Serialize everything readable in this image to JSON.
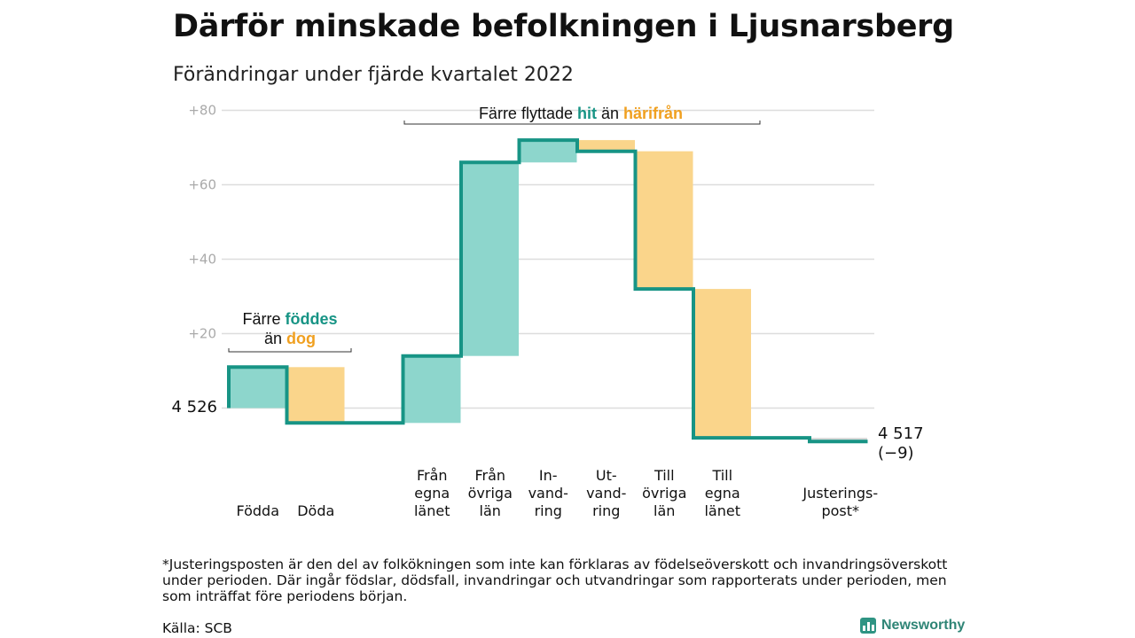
{
  "title": "Därför minskade befolkningen i Ljusnarsberg",
  "subtitle": "Förändringar under fjärde kvartalet 2022",
  "chart_data": {
    "type": "waterfall",
    "start": 4526,
    "start_label": "4 526",
    "end_label_1": "4 517",
    "end_label_2": "(−9)",
    "ylim": [
      -10,
      82
    ],
    "yticks": [
      {
        "v": 20,
        "t": "+20"
      },
      {
        "v": 40,
        "t": "+40"
      },
      {
        "v": 60,
        "t": "+60"
      },
      {
        "v": 80,
        "t": "+80"
      }
    ],
    "steps": [
      {
        "label": [
          "",
          "",
          "Födda"
        ],
        "delta": 11,
        "kind": "in"
      },
      {
        "label": [
          "",
          "",
          "Döda"
        ],
        "delta": -15,
        "kind": "out"
      },
      {
        "label": [
          "Från",
          "egna",
          "länet"
        ],
        "delta": 18,
        "kind": "in"
      },
      {
        "label": [
          "Från",
          "övriga",
          "län"
        ],
        "delta": 52,
        "kind": "in"
      },
      {
        "label": [
          "In-",
          "vand-",
          "ring"
        ],
        "delta": 6,
        "kind": "in"
      },
      {
        "label": [
          "Ut-",
          "vand-",
          "ring"
        ],
        "delta": -3,
        "kind": "out"
      },
      {
        "label": [
          "Till",
          "övriga",
          "län"
        ],
        "delta": -37,
        "kind": "out"
      },
      {
        "label": [
          "Till",
          "egna",
          "länet"
        ],
        "delta": -40,
        "kind": "out"
      },
      {
        "label": [
          "",
          "Justerings-",
          "post*"
        ],
        "delta": -1,
        "kind": "adj"
      }
    ],
    "colors": {
      "in": "#8dd6cc",
      "out": "#fad58b",
      "adj": "#d8d8d8",
      "line": "#179485",
      "grid": "#dddddd"
    },
    "annotations": [
      {
        "lines": [
          [
            {
              "t": "Färre ",
              "c": ""
            },
            {
              "t": "föddes",
              "c": "teal"
            }
          ],
          [
            {
              "t": "än ",
              "c": ""
            },
            {
              "t": "dog",
              "c": "orange"
            }
          ]
        ]
      },
      {
        "lines": [
          [
            {
              "t": "Färre flyttade ",
              "c": ""
            },
            {
              "t": "hit",
              "c": "teal"
            },
            {
              "t": " än ",
              "c": ""
            },
            {
              "t": "härifrån",
              "c": "orange"
            }
          ]
        ]
      }
    ]
  },
  "footnote": "*Justeringsposten är den del av folkökningen som inte kan förklaras av födelseöverskott och invandringsöverskott under perioden. Där ingår födslar, dödsfall, invandringar och utvandringar som rapporterats under perioden, men som inträffat före periodens början.",
  "source": "Källa: SCB",
  "brand": "Newsworthy"
}
